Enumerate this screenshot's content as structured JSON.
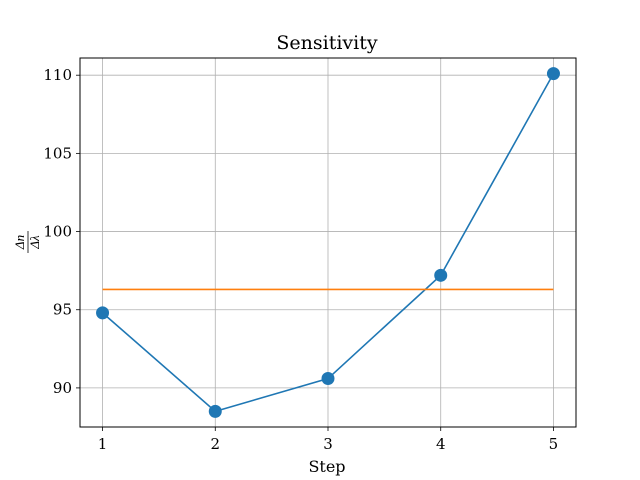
{
  "chart_data": {
    "type": "line",
    "title": "Sensitivity",
    "xlabel": "Step",
    "ylabel": {
      "numerator": "Δn",
      "denominator": "Δλ"
    },
    "x": [
      1,
      2,
      3,
      4,
      5
    ],
    "xticks": [
      "1",
      "2",
      "3",
      "4",
      "5"
    ],
    "yticks": [
      "90",
      "95",
      "100",
      "105",
      "110"
    ],
    "xlim": [
      0.8,
      5.2
    ],
    "ylim": [
      87.5,
      111.1
    ],
    "grid": true,
    "series": [
      {
        "values": [
          94.8,
          88.5,
          90.6,
          97.2,
          110.1
        ],
        "color": "#1f77b4",
        "marker": "circle"
      },
      {
        "values": [
          96.3,
          96.3,
          96.3,
          96.3,
          96.3
        ],
        "color": "#ff7f0e",
        "marker": "none"
      }
    ]
  }
}
